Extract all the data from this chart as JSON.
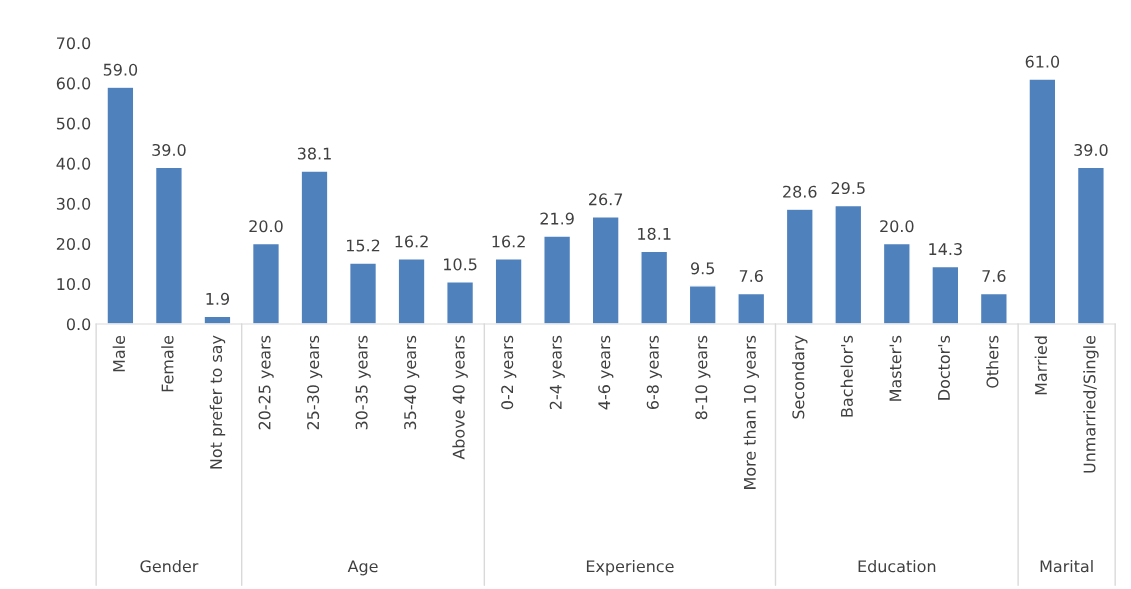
{
  "chart_data": [
    {
      "type": "bar",
      "xlabel": "Gender",
      "categories": [
        "Male",
        "Female",
        "Not prefer to say"
      ],
      "values": [
        59.0,
        39.0,
        1.9
      ],
      "value_labels": [
        "59.0",
        "39.0",
        "1.9"
      ],
      "color": "#4f81bd",
      "ylim": [
        0,
        70
      ],
      "yticks": [
        {
          "value": 0,
          "label": "0.0"
        },
        {
          "value": 10,
          "label": "10.0"
        },
        {
          "value": 20,
          "label": "20.0"
        },
        {
          "value": 30,
          "label": "30.0"
        },
        {
          "value": 40,
          "label": "40.0"
        },
        {
          "value": 50,
          "label": "50.0"
        },
        {
          "value": 60,
          "label": "60.0"
        },
        {
          "value": 70,
          "label": "70.0"
        }
      ]
    },
    {
      "type": "bar",
      "xlabel": "Age",
      "categories": [
        "20-25 years",
        "25-30 years",
        "30-35 years",
        "35-40 years",
        "Above 40 years"
      ],
      "values": [
        20.0,
        38.1,
        15.2,
        16.2,
        10.5
      ],
      "value_labels": [
        "20.0",
        "38.1",
        "15.2",
        "16.2",
        "10.5"
      ],
      "color": "#4f81bd",
      "ylim": [
        0,
        70
      ],
      "tick_labels": "x"
    },
    {
      "type": "bar",
      "xlabel": "Experience",
      "categories": [
        "0-2 years",
        "2-4 years",
        "4-6 years",
        "6-8 years",
        "8-10 years",
        "More than 10 years"
      ],
      "values": [
        16.2,
        21.9,
        26.7,
        18.1,
        9.5,
        7.6
      ],
      "value_labels": [
        "16.2",
        "21.9",
        "26.7",
        "18.1",
        "9.5",
        "7.6"
      ],
      "color": "#4f81bd",
      "ylim": [
        0,
        70
      ],
      "tick_labels": "x"
    },
    {
      "type": "bar",
      "xlabel": "Education",
      "categories": [
        "Secondary",
        "Bachelor's",
        "Master's",
        "Doctor's",
        "Others"
      ],
      "values": [
        28.6,
        29.5,
        20.0,
        14.3,
        7.6
      ],
      "value_labels": [
        "28.6",
        "29.5",
        "20.0",
        "14.3",
        "7.6"
      ],
      "color": "#4f81bd",
      "ylim": [
        0,
        70
      ],
      "tick_labels": "x"
    },
    {
      "type": "bar",
      "xlabel": "Marital",
      "categories": [
        "Married",
        "Unmarried/Single"
      ],
      "values": [
        61.0,
        39.0
      ],
      "value_labels": [
        "61.0",
        "39.0"
      ],
      "color": "#4f81bd",
      "ylim": [
        0,
        70
      ],
      "tick_labels": "x"
    }
  ]
}
